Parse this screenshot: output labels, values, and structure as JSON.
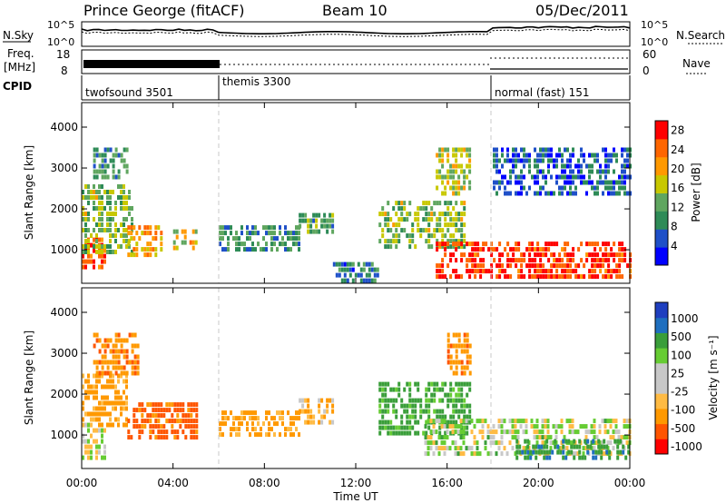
{
  "header": {
    "station": "Prince George (fitACF)",
    "beam": "Beam 10",
    "date": "05/Dec/2011"
  },
  "panels": {
    "nsky_label": "N.Sky",
    "nsearch_label": "N.Search",
    "freq_label_top": "Freq.",
    "freq_label_unit": "[MHz]",
    "nave_label": "Nave",
    "cpid_label": "CPID",
    "nsky_ticks": [
      "10^5",
      "10^0"
    ],
    "nsearch_ticks": [
      "10^5",
      "10^0"
    ],
    "freq_ticks": [
      "18",
      "8"
    ],
    "nave_ticks": [
      "60",
      "0"
    ]
  },
  "modes": [
    {
      "name": "twofsound 3501",
      "start": "00:00",
      "end": "06:00"
    },
    {
      "name": "themis 3300",
      "start": "06:00",
      "end": "18:00"
    },
    {
      "name": "normal (fast) 151",
      "start": "18:00",
      "end": "24:00"
    }
  ],
  "colors": {
    "power": [
      "#0000ff",
      "#1f50c8",
      "#2e8b57",
      "#5fa65f",
      "#c8c800",
      "#ff9900",
      "#ff6600",
      "#ff0000"
    ],
    "velocity": [
      "#ff0000",
      "#ff5500",
      "#ff9900",
      "#ffbb44",
      "#c8c8c8",
      "#c8c8c8",
      "#66cc33",
      "#3a9e3a",
      "#1f6fbf",
      "#1f3fbf"
    ],
    "mode_divider": "#c8c8c8"
  },
  "chart_data": [
    {
      "type": "heatmap",
      "title": "Power",
      "xlabel": "Time UT",
      "ylabel": "Slant Range [km]",
      "x_ticks": [
        "00:00",
        "04:00",
        "08:00",
        "12:00",
        "16:00",
        "20:00",
        "00:00"
      ],
      "xlim_hours": [
        0,
        24
      ],
      "y_ticks": [
        1000,
        2000,
        3000,
        4000
      ],
      "ylim_km": [
        180,
        4600
      ],
      "colorbar_label": "Power [dB]",
      "colorbar_ticks": [
        4,
        8,
        12,
        16,
        20,
        24,
        28
      ],
      "colorbar_range": [
        0,
        30
      ],
      "echo_regions": [
        {
          "t": [
            0.0,
            1.0
          ],
          "r": [
            600,
            1300
          ],
          "level": 26
        },
        {
          "t": [
            0.0,
            2.2
          ],
          "r": [
            900,
            2600
          ],
          "level": 14
        },
        {
          "t": [
            0.5,
            2.0
          ],
          "r": [
            2800,
            3500
          ],
          "level": 10
        },
        {
          "t": [
            2.0,
            3.5
          ],
          "r": [
            900,
            1600
          ],
          "level": 20
        },
        {
          "t": [
            4.0,
            5.0
          ],
          "r": [
            1000,
            1500
          ],
          "level": 18
        },
        {
          "t": [
            6.0,
            9.5
          ],
          "r": [
            1000,
            1600
          ],
          "level": 10
        },
        {
          "t": [
            9.5,
            11.0
          ],
          "r": [
            1400,
            1900
          ],
          "level": 12
        },
        {
          "t": [
            11.0,
            13.0
          ],
          "r": [
            300,
            700
          ],
          "level": 8
        },
        {
          "t": [
            13.0,
            16.8
          ],
          "r": [
            1100,
            2200
          ],
          "level": 14
        },
        {
          "t": [
            15.5,
            17.0
          ],
          "r": [
            2400,
            3500
          ],
          "level": 16
        },
        {
          "t": [
            15.5,
            24.0
          ],
          "r": [
            400,
            1200
          ],
          "level": 27
        },
        {
          "t": [
            18.0,
            24.0
          ],
          "r": [
            2400,
            3500
          ],
          "level": 6
        }
      ]
    },
    {
      "type": "heatmap",
      "title": "Velocity",
      "xlabel": "Time UT",
      "ylabel": "Slant Range [km]",
      "x_ticks": [
        "00:00",
        "04:00",
        "08:00",
        "12:00",
        "16:00",
        "20:00",
        "00:00"
      ],
      "xlim_hours": [
        0,
        24
      ],
      "y_ticks": [
        1000,
        2000,
        3000,
        4000
      ],
      "ylim_km": [
        180,
        4600
      ],
      "colorbar_label": "Velocity [m s⁻¹]",
      "colorbar_ticks": [
        1000,
        500,
        100,
        25,
        -25,
        -100,
        -500,
        -1000
      ],
      "echo_regions": [
        {
          "t": [
            0.0,
            1.0
          ],
          "r": [
            500,
            1300
          ],
          "v": 0
        },
        {
          "t": [
            0.0,
            2.0
          ],
          "r": [
            1300,
            2500
          ],
          "v": -150
        },
        {
          "t": [
            0.5,
            2.5
          ],
          "r": [
            2500,
            3500
          ],
          "v": -200
        },
        {
          "t": [
            2.0,
            5.0
          ],
          "r": [
            900,
            1800
          ],
          "v": -300
        },
        {
          "t": [
            6.0,
            9.5
          ],
          "r": [
            1000,
            1600
          ],
          "v": -150
        },
        {
          "t": [
            9.5,
            11.0
          ],
          "r": [
            1300,
            1900
          ],
          "v": -100
        },
        {
          "t": [
            13.0,
            17.0
          ],
          "r": [
            1100,
            2300
          ],
          "v": 150
        },
        {
          "t": [
            15.0,
            24.0
          ],
          "r": [
            500,
            1400
          ],
          "v": 10
        },
        {
          "t": [
            19.0,
            24.0
          ],
          "r": [
            500,
            900
          ],
          "v": 200
        },
        {
          "t": [
            16.0,
            17.0
          ],
          "r": [
            2500,
            3500
          ],
          "v": -200
        }
      ]
    }
  ]
}
